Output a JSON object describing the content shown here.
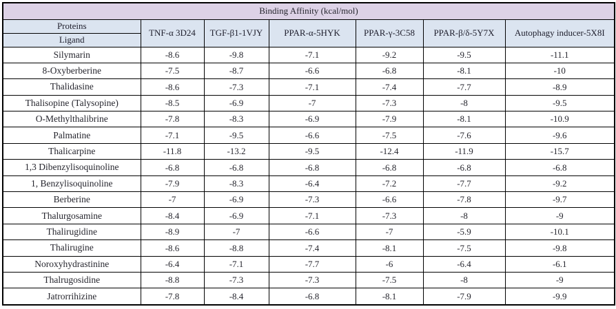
{
  "table": {
    "title": "Binding Affinity (kcal/mol)",
    "corner_top": "Proteins",
    "corner_bottom": "Ligand",
    "columns": [
      "TNF-α 3D24",
      "TGF-β1-1VJY",
      "PPAR-α-5HYK",
      "PPAR-γ-3C58",
      "PPAR-β/δ-5Y7X",
      "Autophagy inducer-5X8I"
    ],
    "rows": [
      {
        "ligand": "Silymarin",
        "values": [
          "-8.6",
          "-9.8",
          "-7.1",
          "-9.2",
          "-9.5",
          "-11.1"
        ]
      },
      {
        "ligand": "8-Oxyberberine",
        "values": [
          "-7.5",
          "-8.7",
          "-6.6",
          "-6.8",
          "-8.1",
          "-10"
        ]
      },
      {
        "ligand": "Thalidasine",
        "values": [
          "-8.6",
          "-7.3",
          "-7.1",
          "-7.4",
          "-7.7",
          "-8.9"
        ]
      },
      {
        "ligand": "Thalisopine (Talysopine)",
        "values": [
          "-8.5",
          "-6.9",
          "-7",
          "-7.3",
          "-8",
          "-9.5"
        ]
      },
      {
        "ligand": "O-Methylthalibrine",
        "values": [
          "-7.8",
          "-8.3",
          "-6.9",
          "-7.9",
          "-8.1",
          "-10.9"
        ]
      },
      {
        "ligand": "Palmatine",
        "values": [
          "-7.1",
          "-9.5",
          "-6.6",
          "-7.5",
          "-7.6",
          "-9.6"
        ]
      },
      {
        "ligand": "Thalicarpine",
        "values": [
          "-11.8",
          "-13.2",
          "-9.5",
          "-12.4",
          "-11.9",
          "-15.7"
        ]
      },
      {
        "ligand": "1,3 Dibenzylisoquinoline",
        "values": [
          "-6.8",
          "-6.8",
          "-6.8",
          "-6.8",
          "-6.8",
          "-6.8"
        ]
      },
      {
        "ligand": "1, Benzylisoquinoline",
        "values": [
          "-7.9",
          "-8.3",
          "-6.4",
          "-7.2",
          "-7.7",
          "-9.2"
        ]
      },
      {
        "ligand": "Berberine",
        "values": [
          "-7",
          "-6.9",
          "-7.3",
          "-6.6",
          "-7.8",
          "-9.7"
        ]
      },
      {
        "ligand": "Thalurgosamine",
        "values": [
          "-8.4",
          "-6.9",
          "-7.1",
          "-7.3",
          "-8",
          "-9"
        ]
      },
      {
        "ligand": "Thalirugidine",
        "values": [
          "-8.9",
          "-7",
          "-6.6",
          "-7",
          "-5.9",
          "-10.1"
        ]
      },
      {
        "ligand": "Thalirugine",
        "values": [
          "-8.6",
          "-8.8",
          "-7.4",
          "-8.1",
          "-7.5",
          "-9.8"
        ]
      },
      {
        "ligand": "Noroxyhydrastinine",
        "values": [
          "-6.4",
          "-7.1",
          "-7.7",
          "-6",
          "-6.4",
          "-6.1"
        ]
      },
      {
        "ligand": "Thalrugosidine",
        "values": [
          "-8.8",
          "-7.3",
          "-7.3",
          "-7.5",
          "-8",
          "-9"
        ]
      },
      {
        "ligand": "Jatrorrihizine",
        "values": [
          "-7.8",
          "-8.4",
          "-6.8",
          "-8.1",
          "-7.9",
          "-9.9"
        ]
      }
    ]
  },
  "colors": {
    "title_bg": "#ddd2e6",
    "header_bg": "#dbe4f0",
    "border": "#000000",
    "text": "#26262e"
  }
}
